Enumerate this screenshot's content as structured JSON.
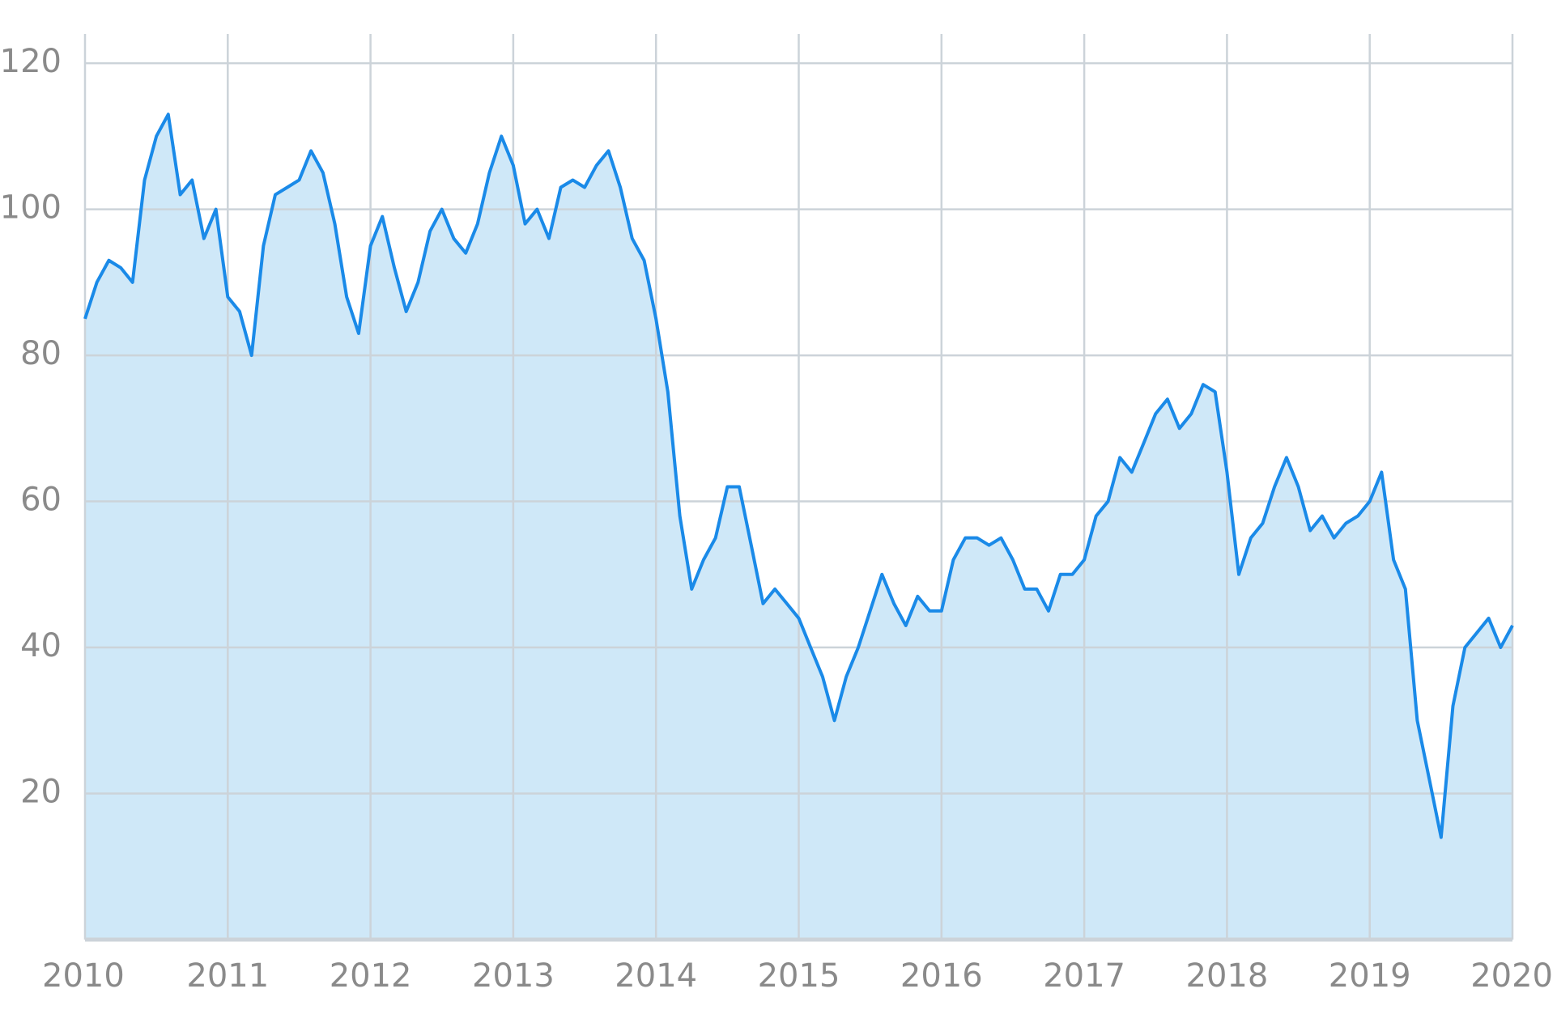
{
  "chart_data": {
    "type": "area",
    "x": [
      2010,
      2010.083,
      2010.167,
      2010.25,
      2010.333,
      2010.417,
      2010.5,
      2010.583,
      2010.667,
      2010.75,
      2010.833,
      2010.917,
      2011,
      2011.083,
      2011.167,
      2011.25,
      2011.333,
      2011.417,
      2011.5,
      2011.583,
      2011.667,
      2011.75,
      2011.833,
      2011.917,
      2012,
      2012.083,
      2012.167,
      2012.25,
      2012.333,
      2012.417,
      2012.5,
      2012.583,
      2012.667,
      2012.75,
      2012.833,
      2012.917,
      2013,
      2013.083,
      2013.167,
      2013.25,
      2013.333,
      2013.417,
      2013.5,
      2013.583,
      2013.667,
      2013.75,
      2013.833,
      2013.917,
      2014,
      2014.083,
      2014.167,
      2014.25,
      2014.333,
      2014.417,
      2014.5,
      2014.583,
      2014.667,
      2014.75,
      2014.833,
      2014.917,
      2015,
      2015.083,
      2015.167,
      2015.25,
      2015.333,
      2015.417,
      2015.5,
      2015.583,
      2015.667,
      2015.75,
      2015.833,
      2015.917,
      2016,
      2016.083,
      2016.167,
      2016.25,
      2016.333,
      2016.417,
      2016.5,
      2016.583,
      2016.667,
      2016.75,
      2016.833,
      2016.917,
      2017,
      2017.083,
      2017.167,
      2017.25,
      2017.333,
      2017.417,
      2017.5,
      2017.583,
      2017.667,
      2017.75,
      2017.833,
      2017.917,
      2018,
      2018.083,
      2018.167,
      2018.25,
      2018.333,
      2018.417,
      2018.5,
      2018.583,
      2018.667,
      2018.75,
      2018.833,
      2018.917,
      2019,
      2019.083,
      2019.167,
      2019.25,
      2019.333,
      2019.417,
      2019.5,
      2019.583,
      2019.667,
      2019.75,
      2019.833,
      2019.917,
      2020
    ],
    "values": [
      85,
      90,
      93,
      92,
      90,
      104,
      110,
      113,
      102,
      104,
      96,
      100,
      88,
      86,
      80,
      95,
      102,
      103,
      104,
      108,
      105,
      98,
      88,
      83,
      95,
      99,
      92,
      86,
      90,
      97,
      100,
      96,
      94,
      98,
      105,
      110,
      106,
      98,
      100,
      96,
      103,
      104,
      103,
      106,
      108,
      103,
      96,
      93,
      85,
      75,
      58,
      48,
      52,
      55,
      62,
      62,
      54,
      46,
      48,
      46,
      44,
      40,
      36,
      30,
      36,
      40,
      45,
      50,
      46,
      43,
      47,
      45,
      45,
      52,
      55,
      55,
      54,
      55,
      52,
      48,
      48,
      45,
      50,
      50,
      52,
      58,
      60,
      66,
      64,
      68,
      72,
      74,
      70,
      72,
      76,
      75,
      64,
      50,
      55,
      57,
      62,
      66,
      62,
      56,
      58,
      55,
      57,
      58,
      60,
      64,
      52,
      48,
      30,
      22,
      14,
      32,
      40,
      42,
      44,
      40,
      43
    ],
    "line_color": "#1a8ae8",
    "fill_color": "#cfe8f8",
    "xlim": [
      2010,
      2020
    ],
    "xticks": [
      2010,
      2011,
      2012,
      2013,
      2014,
      2015,
      2016,
      2017,
      2018,
      2019,
      2020
    ],
    "ylim": [
      0,
      124
    ],
    "yticks": [
      20,
      40,
      60,
      80,
      100,
      120
    ],
    "grid": true
  }
}
